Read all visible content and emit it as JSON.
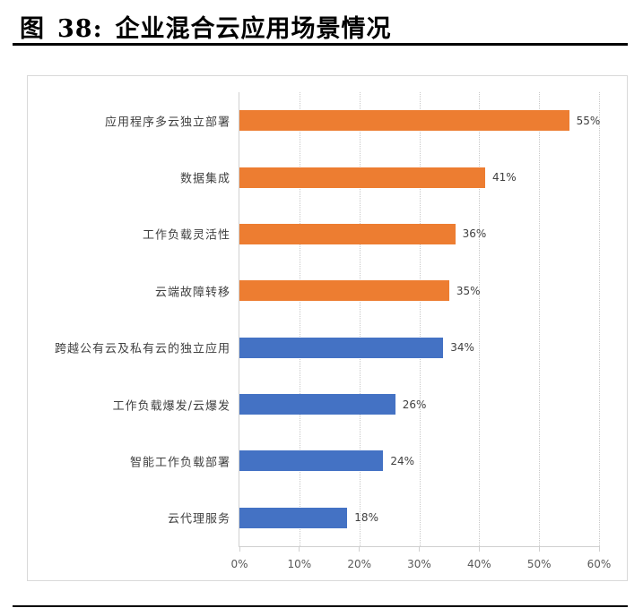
{
  "figure": {
    "label": "图",
    "number": "38:",
    "title": "企业混合云应用场景情况"
  },
  "colors": {
    "orange": "#ED7D31",
    "blue": "#4472C4",
    "grid": "#c8c8c8",
    "axis": "#d0d0d0"
  },
  "chart_data": {
    "type": "bar",
    "orientation": "horizontal",
    "title": "企业混合云应用场景情况",
    "xlabel": "",
    "ylabel": "",
    "xlim": [
      0,
      60
    ],
    "x_ticks": [
      "0%",
      "10%",
      "20%",
      "30%",
      "40%",
      "50%",
      "60%"
    ],
    "grid": "vertical dotted",
    "legend": "none",
    "categories": [
      "应用程序多云独立部署",
      "数据集成",
      "工作负载灵活性",
      "云端故障转移",
      "跨越公有云及私有云的独立应用",
      "工作负载爆发/云爆发",
      "智能工作负载部署",
      "云代理服务"
    ],
    "values": [
      55,
      41,
      36,
      35,
      34,
      26,
      24,
      18
    ],
    "value_labels": [
      "55%",
      "41%",
      "36%",
      "35%",
      "34%",
      "26%",
      "24%",
      "18%"
    ],
    "bar_colors": [
      "#ED7D31",
      "#ED7D31",
      "#ED7D31",
      "#ED7D31",
      "#4472C4",
      "#4472C4",
      "#4472C4",
      "#4472C4"
    ],
    "unit": "%"
  }
}
